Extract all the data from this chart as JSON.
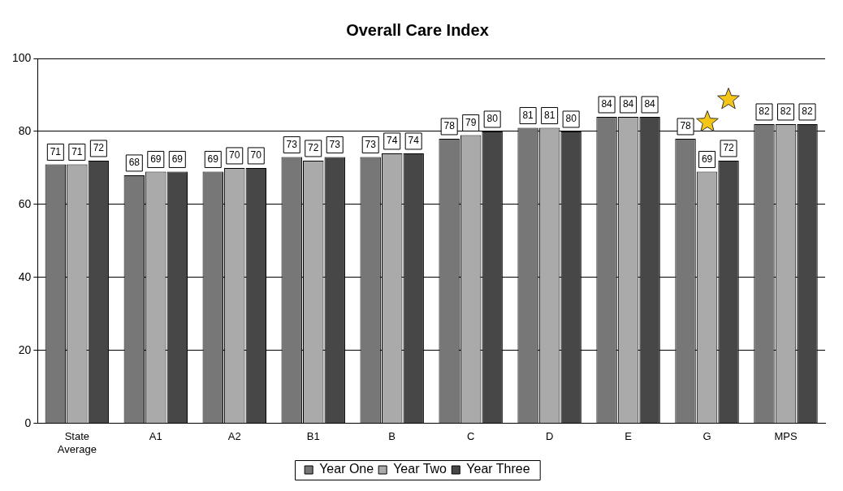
{
  "chart_data": {
    "type": "bar",
    "title": "Overall Care Index",
    "categories": [
      "State Average",
      "A1",
      "A2",
      "B1",
      "B",
      "C",
      "D",
      "E",
      "G",
      "MPS"
    ],
    "series": [
      {
        "name": "Year One",
        "color": "#777777",
        "values": [
          71,
          68,
          69,
          73,
          73,
          78,
          81,
          84,
          78,
          82
        ]
      },
      {
        "name": "Year Two",
        "color": "#aaaaaa",
        "values": [
          71,
          69,
          70,
          72,
          74,
          79,
          81,
          84,
          69,
          82
        ]
      },
      {
        "name": "Year Three",
        "color": "#474747",
        "values": [
          72,
          69,
          70,
          73,
          74,
          80,
          80,
          84,
          72,
          82
        ]
      }
    ],
    "ylim": [
      0,
      100
    ],
    "yticks": [
      0,
      20,
      40,
      60,
      80,
      100
    ],
    "grid": "y",
    "legend": "bottom",
    "data_labels": true
  }
}
